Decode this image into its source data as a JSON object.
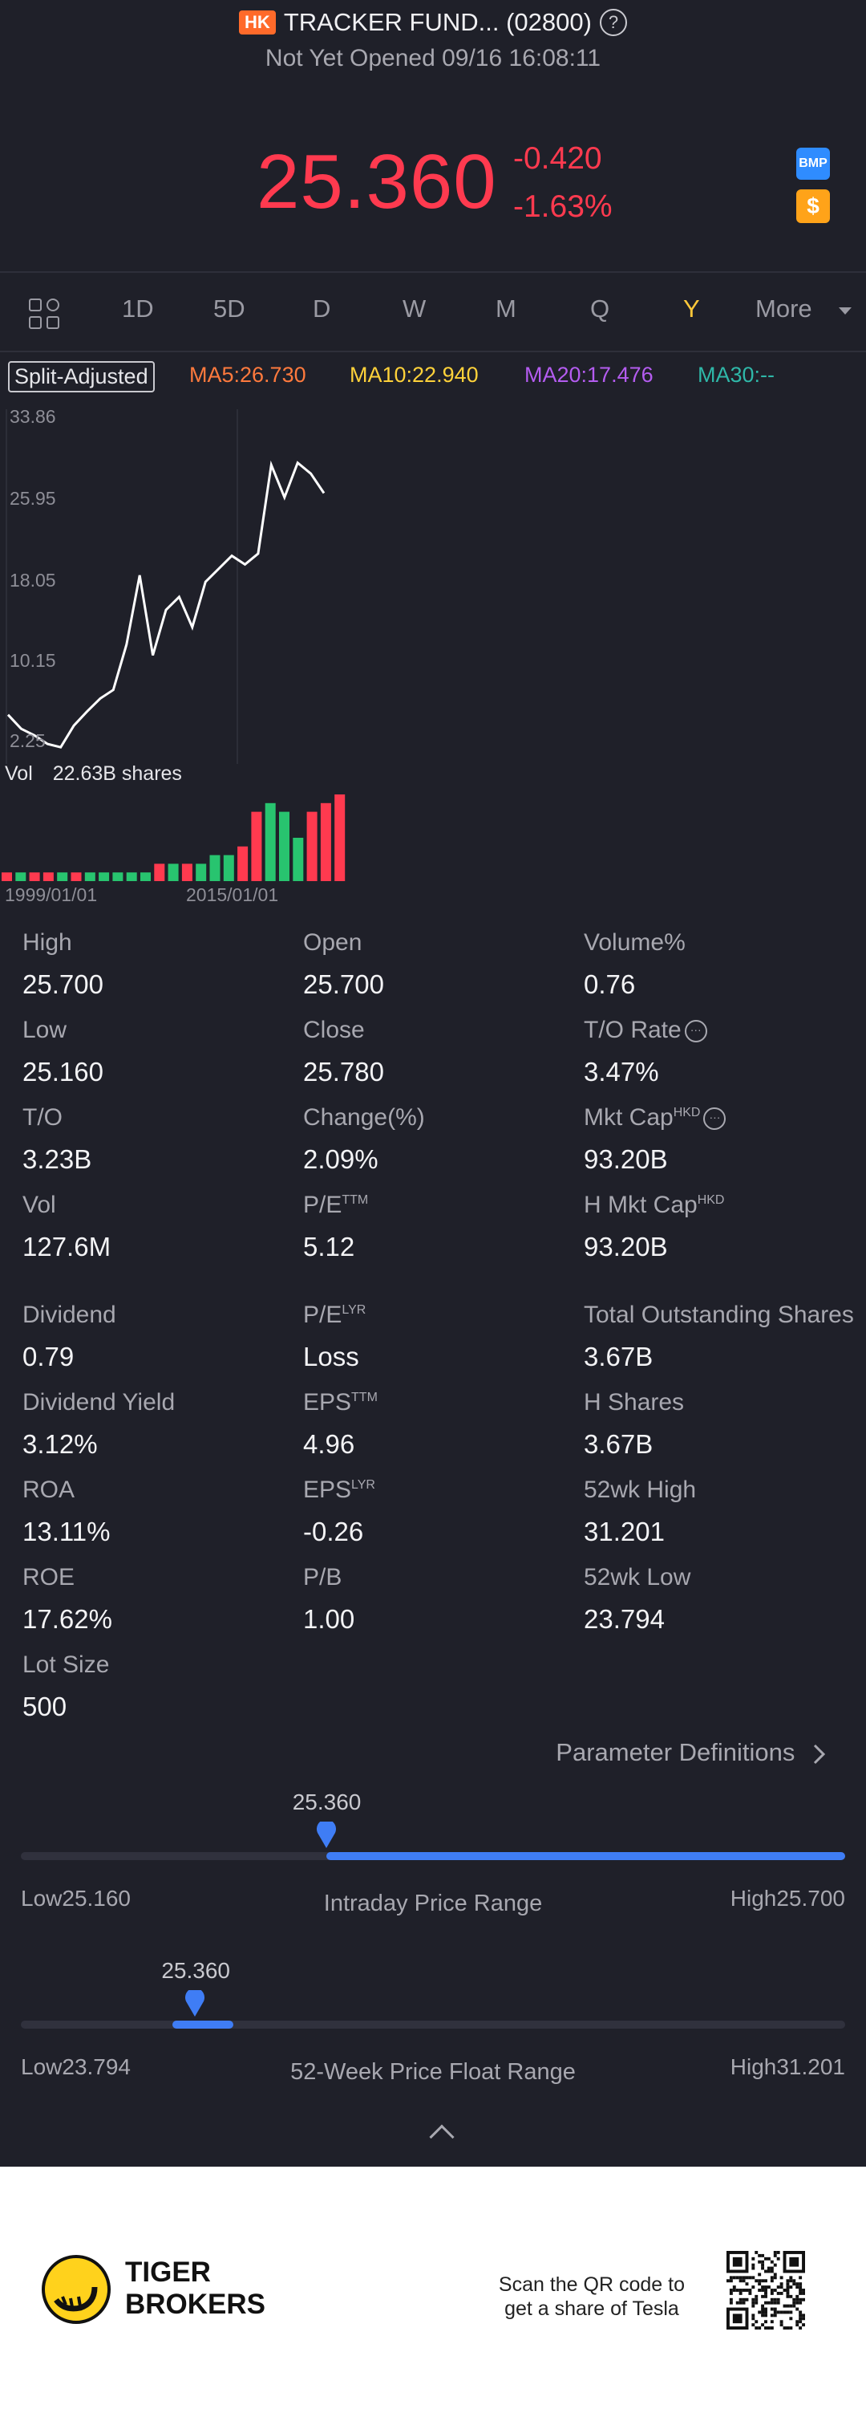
{
  "header": {
    "market_badge": "HK",
    "title": "TRACKER FUND... (02800)",
    "help_glyph": "?",
    "status": "Not Yet Opened 09/16 16:08:11",
    "price": "25.360",
    "change_abs": "-0.420",
    "change_pct": "-1.63%",
    "bmp_label": "BMP",
    "dollar_label": "$",
    "price_color": "#ff3a4f"
  },
  "period_tabs": {
    "items": [
      "1D",
      "5D",
      "D",
      "W",
      "M",
      "Q",
      "Y",
      "More"
    ],
    "active": "Y",
    "active_color": "#ffc83a"
  },
  "ma_row": {
    "split_label": "Split-Adjusted",
    "ma5": "MA5:26.730",
    "ma10": "MA10:22.940",
    "ma20": "MA20:17.476",
    "ma30": "MA30:--",
    "colors": {
      "ma5": "#ff7a3d",
      "ma10": "#ffd23a",
      "ma20": "#b45cf0",
      "ma30": "#2fb7a8"
    }
  },
  "chart_data": {
    "type": "line",
    "y_ticks": [
      "33.86",
      "25.95",
      "18.05",
      "10.15",
      "2.25"
    ],
    "ylim": [
      2.25,
      33.86
    ],
    "x_ticks": [
      "1999/01/01",
      "2015/01/01"
    ],
    "price_series": [
      6.5,
      5.2,
      4.6,
      3.8,
      3.5,
      5.5,
      6.8,
      8.0,
      8.8,
      13.0,
      19.4,
      12.0,
      16.2,
      17.4,
      14.6,
      18.8,
      20.0,
      21.2,
      20.4,
      21.4,
      29.6,
      26.6,
      29.8,
      28.8,
      27.0
    ],
    "volume_label": "Vol",
    "volume_value": "22.63B shares",
    "volume_series": [
      {
        "v": 0.1,
        "up": false
      },
      {
        "v": 0.1,
        "up": true
      },
      {
        "v": 0.1,
        "up": false
      },
      {
        "v": 0.1,
        "up": false
      },
      {
        "v": 0.1,
        "up": true
      },
      {
        "v": 0.1,
        "up": false
      },
      {
        "v": 0.1,
        "up": true
      },
      {
        "v": 0.1,
        "up": true
      },
      {
        "v": 0.1,
        "up": true
      },
      {
        "v": 0.1,
        "up": true
      },
      {
        "v": 0.1,
        "up": true
      },
      {
        "v": 0.2,
        "up": false
      },
      {
        "v": 0.2,
        "up": true
      },
      {
        "v": 0.2,
        "up": false
      },
      {
        "v": 0.2,
        "up": true
      },
      {
        "v": 0.3,
        "up": true
      },
      {
        "v": 0.3,
        "up": true
      },
      {
        "v": 0.4,
        "up": false
      },
      {
        "v": 0.8,
        "up": false
      },
      {
        "v": 0.9,
        "up": true
      },
      {
        "v": 0.8,
        "up": true
      },
      {
        "v": 0.5,
        "up": true
      },
      {
        "v": 0.8,
        "up": false
      },
      {
        "v": 0.9,
        "up": false
      },
      {
        "v": 1.0,
        "up": false
      }
    ],
    "up_color": "#28c46f",
    "down_color": "#ff3a4f"
  },
  "stats": [
    {
      "label": "High",
      "value": "25.700"
    },
    {
      "label": "Open",
      "value": "25.700"
    },
    {
      "label": "Volume%",
      "value": "0.76"
    },
    {
      "label": "Low",
      "value": "25.160"
    },
    {
      "label": "Close",
      "value": "25.780"
    },
    {
      "label": "T/O Rate",
      "value": "3.47%"
    },
    {
      "label": "T/O",
      "value": "3.23B"
    },
    {
      "label": "Change(%)",
      "value": "2.09%"
    },
    {
      "label": "Mkt Cap",
      "sup": "HKD",
      "value": "93.20B"
    },
    {
      "label": "Vol",
      "value": "127.6M"
    },
    {
      "label": "P/E",
      "sup": "TTM",
      "value": "5.12"
    },
    {
      "label": "H Mkt Cap",
      "sup": "HKD",
      "value": "93.20B"
    },
    {
      "label": "Dividend",
      "value": "0.79"
    },
    {
      "label": "P/E",
      "sup": "LYR",
      "value": "Loss"
    },
    {
      "label": "Total Outstanding Shares",
      "value": "3.67B"
    },
    {
      "label": "Dividend Yield",
      "value": "3.12%"
    },
    {
      "label": "EPS",
      "sup": "TTM",
      "value": "4.96"
    },
    {
      "label": "H Shares",
      "value": "3.67B"
    },
    {
      "label": "ROA",
      "value": "13.11%"
    },
    {
      "label": "EPS",
      "sup": "LYR",
      "value": "-0.26"
    },
    {
      "label": "52wk High",
      "value": "31.201"
    },
    {
      "label": "ROE",
      "value": "17.62%"
    },
    {
      "label": "P/B",
      "value": "1.00"
    },
    {
      "label": "52wk Low",
      "value": "23.794"
    },
    {
      "label": "Lot Size",
      "value": "500"
    }
  ],
  "parameter_link": "Parameter Definitions",
  "intraday_range": {
    "title": "Intraday Price Range",
    "current": "25.360",
    "low": "Low25.160",
    "high": "High25.700",
    "low_value": 25.16,
    "high_value": 25.7,
    "current_value": 25.36
  },
  "week52_range": {
    "title": "52-Week Price Float Range",
    "current": "25.360",
    "low": "Low23.794",
    "high": "High31.201",
    "low_value": 23.794,
    "high_value": 31.201,
    "current_value": 25.36
  },
  "footer": {
    "brand_line1": "TIGER",
    "brand_line2": "BROKERS",
    "qr_line1": "Scan the QR code to",
    "qr_line2": "get a share of Tesla"
  }
}
